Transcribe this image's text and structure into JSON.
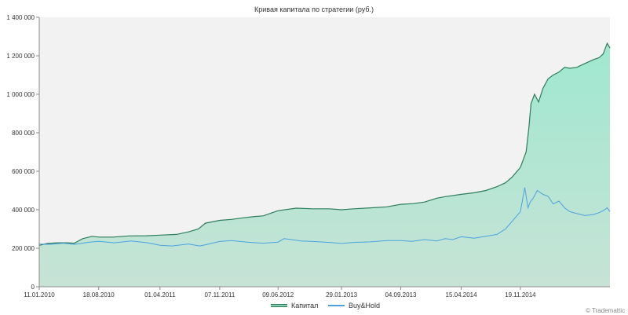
{
  "chart_data": {
    "type": "area",
    "title": "Кривая капитала по стратегии (руб.)",
    "x_tick_labels": [
      "11.01.2010",
      "18.08.2010",
      "01.04.2011",
      "07.11.2011",
      "09.06.2012",
      "29.01.2013",
      "04.09.2013",
      "15.04.2014",
      "19.11.2014"
    ],
    "y_tick_labels": [
      "0",
      "200 000",
      "400 000",
      "600 000",
      "800 000",
      "1 000 000",
      "1 200 000",
      "1 400 000"
    ],
    "ylim": [
      0,
      1400000
    ],
    "xlim": [
      "2010-01-11",
      "2015-10-15"
    ],
    "grid": false,
    "legend": "bottom-center",
    "credit": "© Trademattic",
    "colors": {
      "plot_background": "#f2f2f2",
      "capital_line": "#2e7d5b",
      "capital_fill_top": "#9fe8d0",
      "capital_fill_bottom": "#c7e3d6",
      "buyhold_line": "#4aa3df"
    },
    "series": [
      {
        "name": "Капитал",
        "x": [
          "2010-01-11",
          "2010-02-10",
          "2010-03-20",
          "2010-04-25",
          "2010-05-20",
          "2010-06-20",
          "2010-07-25",
          "2010-08-18",
          "2010-10-10",
          "2010-12-10",
          "2011-02-10",
          "2011-04-01",
          "2011-06-01",
          "2011-07-15",
          "2011-08-20",
          "2011-09-15",
          "2011-11-07",
          "2011-12-20",
          "2012-02-01",
          "2012-03-15",
          "2012-04-15",
          "2012-06-09",
          "2012-08-15",
          "2012-10-15",
          "2012-12-15",
          "2013-01-29",
          "2013-03-15",
          "2013-05-15",
          "2013-07-15",
          "2013-09-04",
          "2013-10-20",
          "2013-12-01",
          "2014-01-15",
          "2014-02-15",
          "2014-04-15",
          "2014-06-01",
          "2014-07-15",
          "2014-08-25",
          "2014-09-25",
          "2014-10-20",
          "2014-11-19",
          "2014-12-10",
          "2014-12-20",
          "2014-12-28",
          "2015-01-10",
          "2015-01-25",
          "2015-02-10",
          "2015-03-01",
          "2015-03-20",
          "2015-04-10",
          "2015-05-01",
          "2015-05-20",
          "2015-06-15",
          "2015-07-15",
          "2015-08-15",
          "2015-09-05",
          "2015-09-20",
          "2015-10-05",
          "2015-10-15"
        ],
        "y": [
          215000,
          225000,
          228000,
          228000,
          226000,
          250000,
          262000,
          258000,
          258000,
          264000,
          265000,
          268000,
          272000,
          285000,
          300000,
          330000,
          345000,
          350000,
          358000,
          365000,
          368000,
          395000,
          408000,
          405000,
          405000,
          400000,
          405000,
          410000,
          415000,
          428000,
          432000,
          440000,
          460000,
          468000,
          480000,
          488000,
          500000,
          520000,
          540000,
          570000,
          620000,
          700000,
          820000,
          950000,
          1000000,
          960000,
          1030000,
          1080000,
          1100000,
          1115000,
          1140000,
          1135000,
          1140000,
          1160000,
          1180000,
          1190000,
          1210000,
          1265000,
          1240000
        ]
      },
      {
        "name": "Buy&Hold",
        "x": [
          "2010-01-11",
          "2010-02-20",
          "2010-04-10",
          "2010-05-20",
          "2010-07-15",
          "2010-08-18",
          "2010-10-15",
          "2010-12-15",
          "2011-02-15",
          "2011-04-01",
          "2011-05-15",
          "2011-07-15",
          "2011-08-25",
          "2011-09-15",
          "2011-11-07",
          "2011-12-20",
          "2012-02-15",
          "2012-04-15",
          "2012-06-09",
          "2012-07-01",
          "2012-09-01",
          "2012-10-15",
          "2012-12-15",
          "2013-01-29",
          "2013-03-15",
          "2013-05-15",
          "2013-07-15",
          "2013-09-04",
          "2013-10-15",
          "2013-12-01",
          "2014-01-15",
          "2014-02-15",
          "2014-03-15",
          "2014-04-15",
          "2014-06-01",
          "2014-07-15",
          "2014-08-25",
          "2014-09-25",
          "2014-10-20",
          "2014-11-19",
          "2014-12-05",
          "2014-12-17",
          "2014-12-25",
          "2015-01-05",
          "2015-01-20",
          "2015-02-10",
          "2015-03-01",
          "2015-03-20",
          "2015-04-10",
          "2015-05-01",
          "2015-05-20",
          "2015-06-15",
          "2015-07-15",
          "2015-08-15",
          "2015-09-05",
          "2015-09-20",
          "2015-10-05",
          "2015-10-15"
        ],
        "y": [
          222000,
          220000,
          226000,
          220000,
          232000,
          236000,
          228000,
          238000,
          228000,
          215000,
          212000,
          222000,
          212000,
          218000,
          235000,
          240000,
          232000,
          226000,
          232000,
          250000,
          238000,
          235000,
          230000,
          225000,
          230000,
          233000,
          240000,
          240000,
          236000,
          245000,
          238000,
          250000,
          245000,
          260000,
          252000,
          262000,
          272000,
          300000,
          340000,
          390000,
          515000,
          410000,
          440000,
          460000,
          500000,
          480000,
          470000,
          430000,
          445000,
          410000,
          390000,
          380000,
          370000,
          375000,
          385000,
          395000,
          410000,
          390000
        ]
      }
    ]
  }
}
